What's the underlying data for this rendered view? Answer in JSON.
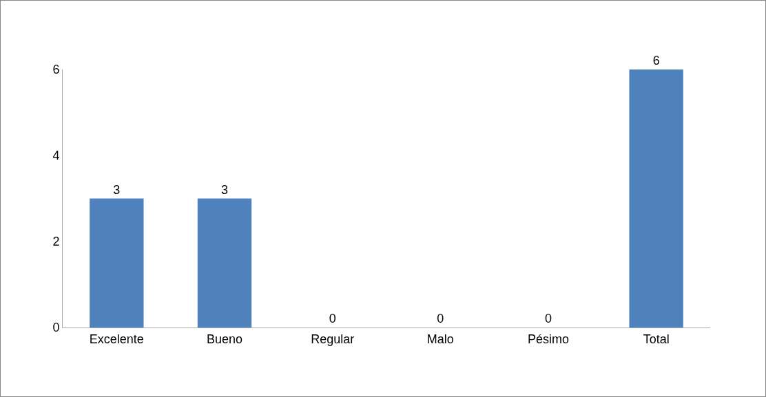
{
  "chart_data": {
    "type": "bar",
    "categories": [
      "Excelente",
      "Bueno",
      "Regular",
      "Malo",
      "Pésimo",
      "Total"
    ],
    "values": [
      3,
      3,
      0,
      0,
      0,
      6
    ],
    "color": "#4f81bd",
    "ylim": [
      0,
      6
    ],
    "yticks": [
      0,
      2,
      4,
      6
    ],
    "grid": false,
    "legend": false,
    "data_labels": true
  }
}
